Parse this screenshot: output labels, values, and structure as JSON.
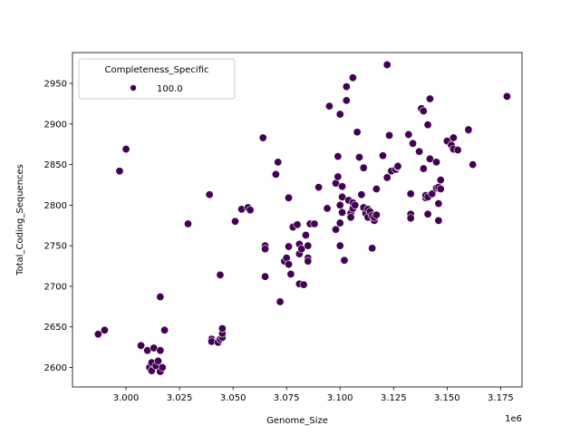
{
  "chart_data": {
    "type": "scatter",
    "title": "",
    "xlabel": "Genome_Size",
    "ylabel": "Total_Coding_Sequences",
    "x_offset_label": "1e6",
    "xlim": [
      2.975,
      3.185
    ],
    "ylim": [
      2576,
      2988
    ],
    "x_ticks": [
      3.0,
      3.025,
      3.05,
      3.075,
      3.1,
      3.125,
      3.15,
      3.175
    ],
    "x_tick_labels": [
      "3.000",
      "3.025",
      "3.050",
      "3.075",
      "3.100",
      "3.125",
      "3.150",
      "3.175"
    ],
    "y_ticks": [
      2600,
      2650,
      2700,
      2750,
      2800,
      2850,
      2900,
      2950
    ],
    "y_tick_labels": [
      "2600",
      "2650",
      "2700",
      "2750",
      "2800",
      "2850",
      "2900",
      "2950"
    ],
    "grid": false,
    "legend": {
      "title": "Completeness_Specific",
      "placement": "top-left",
      "entries": [
        {
          "label": "100.0",
          "color": "#440154"
        }
      ]
    },
    "series": [
      {
        "name": "100.0",
        "color": "#440154",
        "points": [
          [
            2.987,
            2641
          ],
          [
            2.99,
            2646
          ],
          [
            2.997,
            2842
          ],
          [
            3.0,
            2869
          ],
          [
            3.007,
            2627
          ],
          [
            3.01,
            2621
          ],
          [
            3.011,
            2600
          ],
          [
            3.012,
            2606
          ],
          [
            3.012,
            2596
          ],
          [
            3.013,
            2624
          ],
          [
            3.014,
            2602
          ],
          [
            3.015,
            2608
          ],
          [
            3.016,
            2595
          ],
          [
            3.016,
            2621
          ],
          [
            3.016,
            2687
          ],
          [
            3.017,
            2600
          ],
          [
            3.018,
            2646
          ],
          [
            3.029,
            2777
          ],
          [
            3.039,
            2813
          ],
          [
            3.04,
            2635
          ],
          [
            3.04,
            2632
          ],
          [
            3.043,
            2631
          ],
          [
            3.044,
            2635
          ],
          [
            3.044,
            2714
          ],
          [
            3.045,
            2637
          ],
          [
            3.045,
            2642
          ],
          [
            3.045,
            2648
          ],
          [
            3.051,
            2780
          ],
          [
            3.054,
            2795
          ],
          [
            3.057,
            2797
          ],
          [
            3.058,
            2794
          ],
          [
            3.064,
            2883
          ],
          [
            3.065,
            2750
          ],
          [
            3.065,
            2746
          ],
          [
            3.065,
            2712
          ],
          [
            3.07,
            2838
          ],
          [
            3.071,
            2853
          ],
          [
            3.072,
            2681
          ],
          [
            3.074,
            2731
          ],
          [
            3.075,
            2735
          ],
          [
            3.076,
            2749
          ],
          [
            3.076,
            2809
          ],
          [
            3.076,
            2727
          ],
          [
            3.077,
            2715
          ],
          [
            3.078,
            2773
          ],
          [
            3.08,
            2776
          ],
          [
            3.081,
            2703
          ],
          [
            3.081,
            2752
          ],
          [
            3.081,
            2740
          ],
          [
            3.082,
            2746
          ],
          [
            3.083,
            2702
          ],
          [
            3.084,
            2763
          ],
          [
            3.085,
            2750
          ],
          [
            3.085,
            2735
          ],
          [
            3.085,
            2731
          ],
          [
            3.086,
            2777
          ],
          [
            3.088,
            2777
          ],
          [
            3.09,
            2822
          ],
          [
            3.094,
            2796
          ],
          [
            3.095,
            2922
          ],
          [
            3.098,
            2827
          ],
          [
            3.098,
            2770
          ],
          [
            3.099,
            2860
          ],
          [
            3.099,
            2835
          ],
          [
            3.1,
            2912
          ],
          [
            3.1,
            2800
          ],
          [
            3.1,
            2778
          ],
          [
            3.1,
            2750
          ],
          [
            3.101,
            2791
          ],
          [
            3.101,
            2810
          ],
          [
            3.101,
            2823
          ],
          [
            3.102,
            2732
          ],
          [
            3.103,
            2946
          ],
          [
            3.103,
            2929
          ],
          [
            3.104,
            2806
          ],
          [
            3.105,
            2790
          ],
          [
            3.105,
            2785
          ],
          [
            3.106,
            2796
          ],
          [
            3.106,
            2803
          ],
          [
            3.106,
            2957
          ],
          [
            3.107,
            2800
          ],
          [
            3.108,
            2890
          ],
          [
            3.109,
            2859
          ],
          [
            3.11,
            2813
          ],
          [
            3.111,
            2846
          ],
          [
            3.111,
            2797
          ],
          [
            3.112,
            2790
          ],
          [
            3.113,
            2795
          ],
          [
            3.113,
            2785
          ],
          [
            3.114,
            2792
          ],
          [
            3.115,
            2747
          ],
          [
            3.115,
            2787
          ],
          [
            3.116,
            2781
          ],
          [
            3.116,
            2785
          ],
          [
            3.117,
            2788
          ],
          [
            3.117,
            2820
          ],
          [
            3.12,
            2861
          ],
          [
            3.122,
            2973
          ],
          [
            3.122,
            2834
          ],
          [
            3.123,
            2886
          ],
          [
            3.124,
            2842
          ],
          [
            3.126,
            2844
          ],
          [
            3.127,
            2847
          ],
          [
            3.127,
            2848
          ],
          [
            3.132,
            2887
          ],
          [
            3.133,
            2814
          ],
          [
            3.133,
            2789
          ],
          [
            3.133,
            2784
          ],
          [
            3.134,
            2876
          ],
          [
            3.137,
            2866
          ],
          [
            3.138,
            2919
          ],
          [
            3.139,
            2916
          ],
          [
            3.139,
            2845
          ],
          [
            3.14,
            2809
          ],
          [
            3.14,
            2812
          ],
          [
            3.141,
            2789
          ],
          [
            3.141,
            2899
          ],
          [
            3.141,
            2810
          ],
          [
            3.142,
            2931
          ],
          [
            3.142,
            2857
          ],
          [
            3.143,
            2814
          ],
          [
            3.145,
            2853
          ],
          [
            3.145,
            2821
          ],
          [
            3.146,
            2781
          ],
          [
            3.146,
            2822
          ],
          [
            3.146,
            2802
          ],
          [
            3.147,
            2831
          ],
          [
            3.147,
            2820
          ],
          [
            3.15,
            2879
          ],
          [
            3.152,
            2874
          ],
          [
            3.153,
            2883
          ],
          [
            3.153,
            2869
          ],
          [
            3.155,
            2868
          ],
          [
            3.16,
            2892
          ],
          [
            3.16,
            2893
          ],
          [
            3.162,
            2850
          ],
          [
            3.178,
            2934
          ]
        ]
      }
    ]
  }
}
